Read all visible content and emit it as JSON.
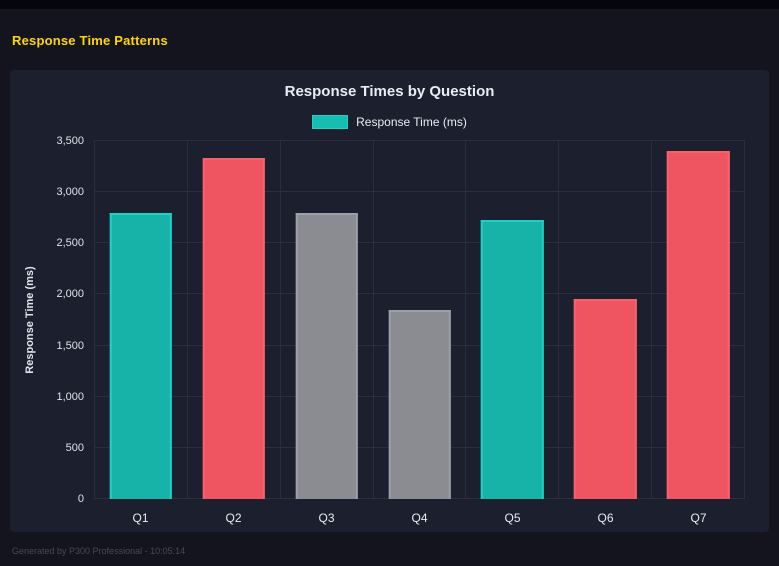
{
  "header": {
    "title": "Response Time Patterns",
    "accent_color": "#FFD700"
  },
  "footer": {
    "text": "Generated by P300 Professional - 10:05:14"
  },
  "chart_data": {
    "type": "bar",
    "title": "Response Times by Question",
    "legend": {
      "label": "Response Time (ms)",
      "color": "#16bdb1",
      "border_color": "#1bd2c5"
    },
    "categories": [
      "Q1",
      "Q2",
      "Q3",
      "Q4",
      "Q5",
      "Q6",
      "Q7"
    ],
    "values": [
      2800,
      3330,
      2800,
      1850,
      2730,
      1960,
      3400
    ],
    "colors": [
      "#17b3a8",
      "#ef5560",
      "#8a8c91",
      "#8a8c91",
      "#17b3a8",
      "#ef5560",
      "#ef5560"
    ],
    "border_colors": [
      "#1bd2c5",
      "#f5626d",
      "#9aa0a8",
      "#9aa0a8",
      "#1bd2c5",
      "#f5626d",
      "#f5626d"
    ],
    "xlabel": "",
    "ylabel": "Response Time (ms)",
    "ylim": [
      0,
      3500
    ],
    "ytick_step": 500,
    "yticks": [
      "0",
      "500",
      "1,000",
      "1,500",
      "2,000",
      "2,500",
      "3,000",
      "3,500"
    ],
    "grid": true,
    "legend_position": "top"
  }
}
